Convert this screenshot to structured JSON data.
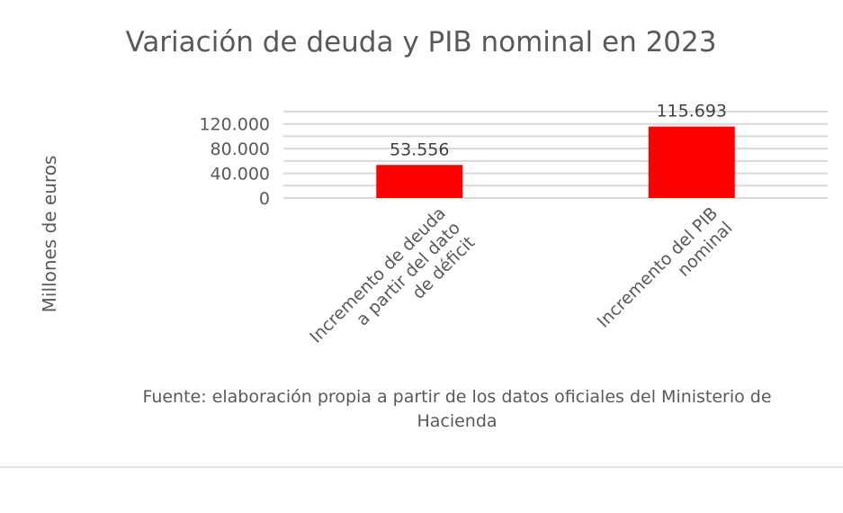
{
  "chart_data": {
    "type": "bar",
    "title": "Variación de deuda y PIB nominal en 2023",
    "ylabel": "Millones de euros",
    "xlabel": "",
    "categories": [
      "Incremento de deuda a partir del dato de déficit",
      "Incremento del PIB nominal"
    ],
    "values": [
      53556,
      115693
    ],
    "data_labels": [
      "53.556",
      "115.693"
    ],
    "ylim": [
      0,
      140000
    ],
    "yticks": [
      0,
      40000,
      80000,
      120000
    ],
    "ytick_labels": [
      "0",
      "40.000",
      "80.000",
      "120.000"
    ],
    "gridlines": [
      0,
      20000,
      40000,
      60000,
      80000,
      100000,
      120000,
      140000
    ],
    "grid": true,
    "bar_color": "#ff0000"
  },
  "source": "Fuente: elaboración propia a partir de los datos oficiales del Ministerio de Hacienda"
}
